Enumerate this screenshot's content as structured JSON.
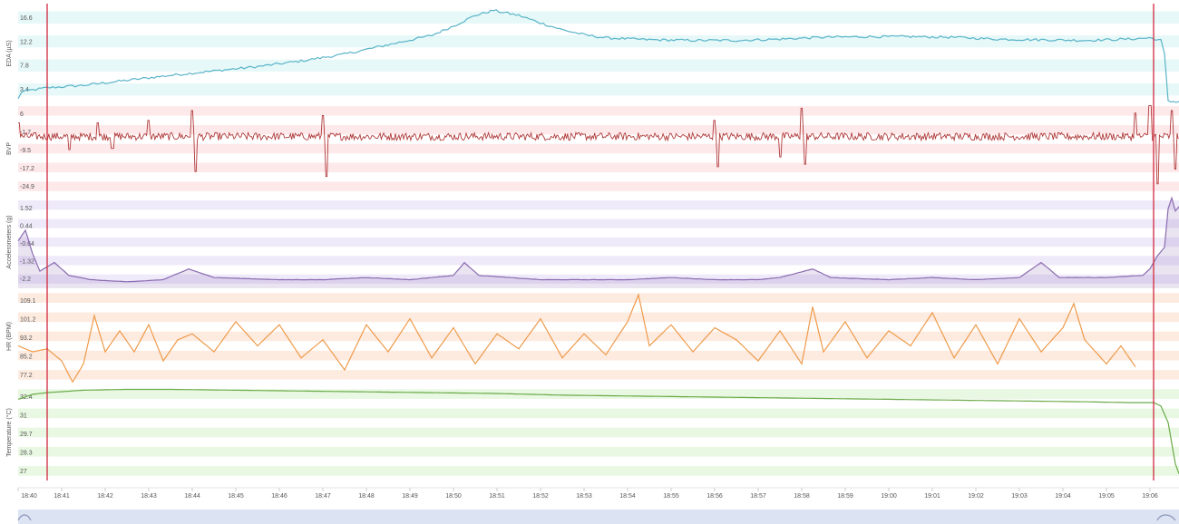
{
  "chart_data": {
    "type": "line",
    "x_axis": {
      "start": "18:40",
      "end": "19:06:40",
      "ticks": [
        "18:40",
        "18:41",
        "18:42",
        "18:43",
        "18:44",
        "18:45",
        "18:46",
        "18:47",
        "18:48",
        "18:49",
        "18:50",
        "18:51",
        "18:52",
        "18:53",
        "18:54",
        "18:55",
        "18:56",
        "18:57",
        "18:58",
        "18:59",
        "19:00",
        "19:01",
        "19:02",
        "19:03",
        "19:04",
        "19:05",
        "19:06"
      ]
    },
    "markers": [
      "18:40:40",
      "19:06:05"
    ],
    "panels": [
      {
        "ylabel": "EDA (µS)",
        "color": "#5ab4c8",
        "band_color": "#e6f8f8",
        "ylim": [
          3.4,
          18.8
        ],
        "ticks": [
          "16.6",
          "12.2",
          "7.8",
          "3.4"
        ],
        "series": [
          [
            "18:40:00",
            3.8
          ],
          [
            "18:40:05",
            5.0
          ],
          [
            "18:40:40",
            5.6
          ],
          [
            "18:41:30",
            6.0
          ],
          [
            "18:42:30",
            6.8
          ],
          [
            "18:43:30",
            7.6
          ],
          [
            "18:44:30",
            8.3
          ],
          [
            "18:45:30",
            9.0
          ],
          [
            "18:46:30",
            9.9
          ],
          [
            "18:47:30",
            11.0
          ],
          [
            "18:48:30",
            12.5
          ],
          [
            "18:49:30",
            14.0
          ],
          [
            "18:50:00",
            15.5
          ],
          [
            "18:50:30",
            17.2
          ],
          [
            "18:50:55",
            18.0
          ],
          [
            "18:51:30",
            17.2
          ],
          [
            "18:52:00",
            16.0
          ],
          [
            "18:52:30",
            14.9
          ],
          [
            "18:53:00",
            14.1
          ],
          [
            "18:53:30",
            13.6
          ],
          [
            "18:54:30",
            13.3
          ],
          [
            "18:55:30",
            13.2
          ],
          [
            "18:56:30",
            13.2
          ],
          [
            "18:57:30",
            13.4
          ],
          [
            "18:58:30",
            13.7
          ],
          [
            "18:59:30",
            13.8
          ],
          [
            "19:00:30",
            13.8
          ],
          [
            "19:01:30",
            13.7
          ],
          [
            "19:02:30",
            13.4
          ],
          [
            "19:03:30",
            13.3
          ],
          [
            "19:04:30",
            13.2
          ],
          [
            "19:05:30",
            13.4
          ],
          [
            "19:06:00",
            13.6
          ],
          [
            "19:06:15",
            13.2
          ],
          [
            "19:06:20",
            11.0
          ],
          [
            "19:06:25",
            3.4
          ],
          [
            "19:06:40",
            3.4
          ]
        ]
      },
      {
        "ylabel": "BVP",
        "color": "#b03a3a",
        "band_color": "#fde8ea",
        "ylim": [
          -24.9,
          13.7
        ],
        "ticks": [
          "6",
          "-1.7",
          "-9.5",
          "-17.2",
          "-24.9"
        ],
        "series_description_note": "",
        "spikes": [
          [
            "18:40:00",
            5.0
          ],
          [
            "18:41:10",
            -6.0
          ],
          [
            "18:41:50",
            5.0
          ],
          [
            "18:42:10",
            -5.5
          ],
          [
            "18:43:00",
            6.0
          ],
          [
            "18:44:00",
            10.0
          ],
          [
            "18:44:05",
            -15.0
          ],
          [
            "18:47:00",
            8.0
          ],
          [
            "18:47:05",
            -17.0
          ],
          [
            "18:56:00",
            6.0
          ],
          [
            "18:56:05",
            -13.0
          ],
          [
            "18:57:30",
            -9.0
          ],
          [
            "18:58:00",
            11.0
          ],
          [
            "18:58:05",
            -12.0
          ],
          [
            "19:05:40",
            9.0
          ],
          [
            "19:06:00",
            12.0
          ],
          [
            "19:06:10",
            -20.0
          ],
          [
            "19:06:30",
            10.0
          ],
          [
            "19:06:35",
            -14.0
          ]
        ]
      },
      {
        "ylabel": "Accelerometers (g)",
        "color": "#8a6cb0",
        "band_color": "#efeafa",
        "ylim": [
          -2.2,
          2.1
        ],
        "ticks": [
          "1.52",
          "0.44",
          "-0.64",
          "-1.32",
          "-2.2"
        ],
        "series": [
          [
            "18:40:00",
            0.0
          ],
          [
            "18:40:10",
            0.5
          ],
          [
            "18:40:20",
            -0.6
          ],
          [
            "18:40:30",
            -1.4
          ],
          [
            "18:40:50",
            -1.0
          ],
          [
            "18:41:10",
            -1.6
          ],
          [
            "18:41:40",
            -1.8
          ],
          [
            "18:42:30",
            -1.9
          ],
          [
            "18:43:20",
            -1.8
          ],
          [
            "18:43:55",
            -1.3
          ],
          [
            "18:44:30",
            -1.7
          ],
          [
            "18:46:00",
            -1.8
          ],
          [
            "18:47:00",
            -1.8
          ],
          [
            "18:48:00",
            -1.7
          ],
          [
            "18:49:00",
            -1.8
          ],
          [
            "18:50:00",
            -1.6
          ],
          [
            "18:50:15",
            -1.0
          ],
          [
            "18:50:35",
            -1.6
          ],
          [
            "18:52:00",
            -1.8
          ],
          [
            "18:53:00",
            -1.8
          ],
          [
            "18:54:00",
            -1.8
          ],
          [
            "18:55:00",
            -1.7
          ],
          [
            "18:56:00",
            -1.8
          ],
          [
            "18:57:00",
            -1.8
          ],
          [
            "18:57:30",
            -1.7
          ],
          [
            "18:58:15",
            -1.3
          ],
          [
            "18:58:40",
            -1.7
          ],
          [
            "19:00:00",
            -1.8
          ],
          [
            "19:01:00",
            -1.7
          ],
          [
            "19:02:00",
            -1.8
          ],
          [
            "19:03:00",
            -1.7
          ],
          [
            "19:03:30",
            -1.0
          ],
          [
            "19:03:55",
            -1.7
          ],
          [
            "19:05:00",
            -1.7
          ],
          [
            "19:05:50",
            -1.6
          ],
          [
            "19:06:00",
            -1.3
          ],
          [
            "19:06:10",
            -0.7
          ],
          [
            "19:06:20",
            -0.3
          ],
          [
            "19:06:25",
            1.5
          ],
          [
            "19:06:30",
            2.0
          ],
          [
            "19:06:35",
            1.4
          ],
          [
            "19:06:40",
            1.6
          ]
        ]
      },
      {
        "ylabel": "HR (BPM)",
        "color": "#ee9a4a",
        "band_color": "#fdebe0",
        "ylim": [
          77.2,
          109.1
        ],
        "ticks": [
          "109.1",
          "101.2",
          "93.2",
          "85.2",
          "77.2"
        ],
        "series": [
          [
            "18:40:00",
            90.0
          ],
          [
            "18:40:20",
            88.0
          ],
          [
            "18:40:40",
            89.0
          ],
          [
            "18:41:00",
            85.0
          ],
          [
            "18:41:15",
            78.0
          ],
          [
            "18:41:30",
            84.0
          ],
          [
            "18:41:45",
            100.0
          ],
          [
            "18:42:00",
            88.0
          ],
          [
            "18:42:20",
            95.0
          ],
          [
            "18:42:40",
            88.0
          ],
          [
            "18:43:00",
            97.0
          ],
          [
            "18:43:20",
            85.0
          ],
          [
            "18:43:40",
            92.0
          ],
          [
            "18:44:00",
            94.0
          ],
          [
            "18:44:30",
            88.0
          ],
          [
            "18:45:00",
            98.0
          ],
          [
            "18:45:30",
            90.0
          ],
          [
            "18:46:00",
            97.0
          ],
          [
            "18:46:30",
            86.0
          ],
          [
            "18:47:00",
            92.0
          ],
          [
            "18:47:30",
            82.0
          ],
          [
            "18:48:00",
            97.0
          ],
          [
            "18:48:30",
            88.0
          ],
          [
            "18:49:00",
            99.0
          ],
          [
            "18:49:30",
            86.0
          ],
          [
            "18:50:00",
            96.0
          ],
          [
            "18:50:30",
            84.0
          ],
          [
            "18:51:00",
            94.0
          ],
          [
            "18:51:30",
            89.0
          ],
          [
            "18:52:00",
            99.0
          ],
          [
            "18:52:30",
            86.0
          ],
          [
            "18:53:00",
            94.0
          ],
          [
            "18:53:30",
            87.0
          ],
          [
            "18:54:00",
            98.0
          ],
          [
            "18:54:15",
            107.0
          ],
          [
            "18:54:30",
            90.0
          ],
          [
            "18:55:00",
            97.0
          ],
          [
            "18:55:30",
            88.0
          ],
          [
            "18:56:00",
            96.0
          ],
          [
            "18:56:30",
            92.0
          ],
          [
            "18:57:00",
            85.0
          ],
          [
            "18:57:30",
            95.0
          ],
          [
            "18:58:00",
            84.0
          ],
          [
            "18:58:15",
            103.0
          ],
          [
            "18:58:30",
            88.0
          ],
          [
            "18:59:00",
            98.0
          ],
          [
            "18:59:30",
            86.0
          ],
          [
            "19:00:00",
            95.0
          ],
          [
            "19:00:30",
            90.0
          ],
          [
            "19:01:00",
            101.0
          ],
          [
            "19:01:30",
            86.0
          ],
          [
            "19:02:00",
            97.0
          ],
          [
            "19:02:30",
            84.0
          ],
          [
            "19:03:00",
            99.0
          ],
          [
            "19:03:30",
            88.0
          ],
          [
            "19:04:00",
            96.0
          ],
          [
            "19:04:15",
            104.0
          ],
          [
            "19:04:30",
            92.0
          ],
          [
            "19:05:00",
            84.0
          ],
          [
            "19:05:20",
            90.0
          ],
          [
            "19:05:40",
            83.0
          ]
        ]
      },
      {
        "ylabel": "Temperature (°C)",
        "color": "#6aaa48",
        "band_color": "#e8f8e2",
        "ylim": [
          27.0,
          32.8
        ],
        "ticks": [
          "32.4",
          "31",
          "29.7",
          "28.3",
          "27"
        ],
        "series": [
          [
            "18:40:00",
            31.9
          ],
          [
            "18:40:20",
            32.2
          ],
          [
            "18:40:40",
            32.3
          ],
          [
            "18:41:30",
            32.45
          ],
          [
            "18:42:30",
            32.5
          ],
          [
            "18:43:30",
            32.5
          ],
          [
            "18:45:00",
            32.45
          ],
          [
            "18:46:30",
            32.4
          ],
          [
            "18:48:00",
            32.35
          ],
          [
            "18:49:30",
            32.3
          ],
          [
            "18:51:00",
            32.25
          ],
          [
            "18:52:30",
            32.15
          ],
          [
            "18:54:00",
            32.1
          ],
          [
            "18:55:30",
            32.05
          ],
          [
            "18:57:00",
            32.0
          ],
          [
            "18:58:30",
            31.95
          ],
          [
            "19:00:00",
            31.9
          ],
          [
            "19:01:30",
            31.85
          ],
          [
            "19:03:00",
            31.8
          ],
          [
            "19:04:30",
            31.75
          ],
          [
            "19:05:30",
            31.7
          ],
          [
            "19:06:05",
            31.7
          ],
          [
            "19:06:15",
            31.5
          ],
          [
            "19:06:25",
            30.5
          ],
          [
            "19:06:35",
            28.0
          ],
          [
            "19:06:40",
            27.4
          ]
        ]
      }
    ]
  }
}
